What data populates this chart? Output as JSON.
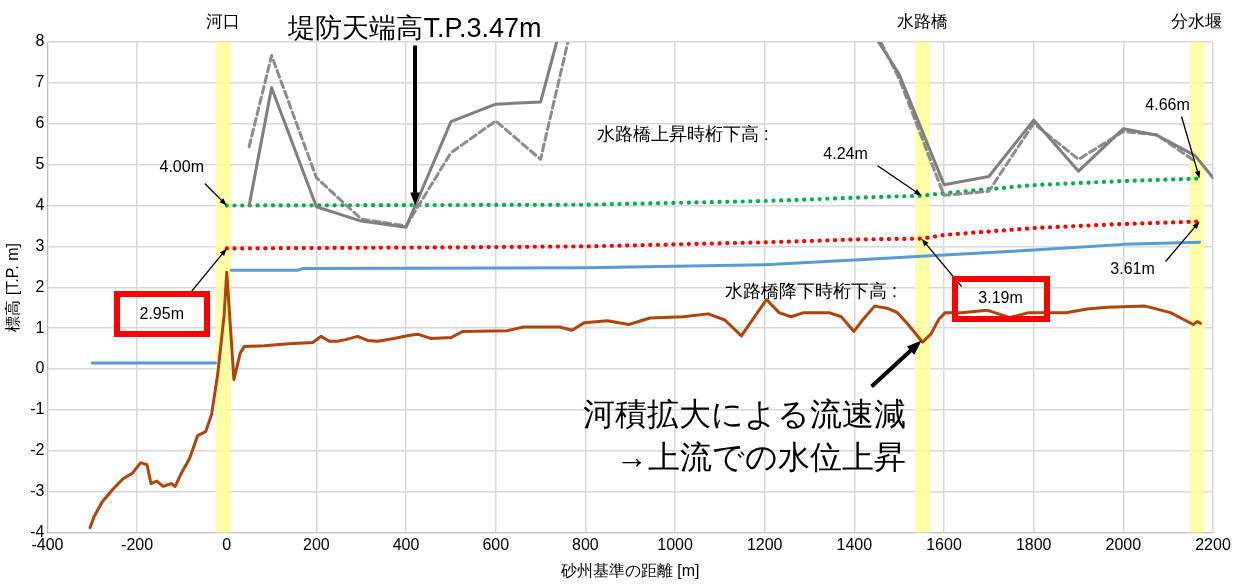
{
  "chart_data": {
    "type": "line",
    "xlabel": "砂州基準の距離 [m]",
    "ylabel": "標高 [T.P. m]",
    "xlim": [
      -400,
      2200
    ],
    "xticks": [
      -400,
      -200,
      0,
      200,
      400,
      600,
      800,
      1000,
      1200,
      1400,
      1600,
      1800,
      2000,
      2200
    ],
    "ylim": [
      -4,
      8
    ],
    "yticks": [
      -4,
      -3,
      -2,
      -1,
      0,
      1,
      2,
      3,
      4,
      5,
      6,
      7,
      8
    ],
    "grid": true,
    "marker": "none",
    "bands": [
      {
        "axis": "x",
        "from": -25,
        "to": 9,
        "label": "河口",
        "color": "#ffff99"
      },
      {
        "axis": "x",
        "from": 1535,
        "to": 1567,
        "label": "水路橋",
        "color": "#ffff99"
      },
      {
        "axis": "x",
        "from": 2147,
        "to": 2181,
        "label": "分水堰",
        "color": "#ffff99"
      }
    ],
    "series": [
      {
        "color": "#7f7f7f",
        "line_style": "solid",
        "x": [
          50,
          100,
          200,
          300,
          400,
          500,
          600,
          700,
          736,
          1100,
          1454,
          1500,
          1600,
          1700,
          1800,
          1900,
          2000,
          2075,
          2160,
          2200
        ],
        "values": [
          4.0,
          6.88,
          3.97,
          3.62,
          3.47,
          6.05,
          6.48,
          6.53,
          8.0,
          null,
          8.0,
          7.21,
          4.51,
          4.71,
          6.09,
          4.84,
          5.88,
          5.72,
          5.22,
          4.68
        ]
      },
      {
        "color": "#8c8c8c",
        "line_style": "dashed",
        "x": [
          50,
          100,
          200,
          300,
          400,
          500,
          600,
          700,
          761,
          1100,
          1459,
          1500,
          1600,
          1700,
          1800,
          1900,
          2000,
          2075,
          2160
        ],
        "values": [
          5.44,
          7.67,
          4.68,
          3.67,
          3.5,
          5.29,
          6.07,
          5.13,
          8.0,
          null,
          8.0,
          7.1,
          4.25,
          4.35,
          6.01,
          5.13,
          5.81,
          5.73,
          5.08
        ]
      },
      {
        "color": "#00b050",
        "line_style": "dotted",
        "x": [
          0,
          400,
          800,
          1200,
          1400,
          1550,
          1600,
          1800,
          2000,
          2170
        ],
        "values": [
          4.0,
          4.01,
          4.02,
          4.11,
          4.19,
          4.24,
          4.3,
          4.5,
          4.6,
          4.66
        ]
      },
      {
        "color": "#ff0000",
        "line_style": "dotted",
        "x": [
          0,
          400,
          800,
          1200,
          1400,
          1550,
          1600,
          1800,
          2000,
          2170
        ],
        "values": [
          2.95,
          2.97,
          3.0,
          3.1,
          3.17,
          3.19,
          3.28,
          3.45,
          3.55,
          3.61
        ]
      },
      {
        "color": "#5b9bd5",
        "line_style": "solid",
        "x": [
          -300,
          -25,
          -10,
          10,
          160,
          170,
          800,
          1200,
          1400,
          1600,
          1800,
          2000,
          2170
        ],
        "values": [
          0.15,
          0.15,
          null,
          2.42,
          2.42,
          2.46,
          2.48,
          2.55,
          2.67,
          2.79,
          2.91,
          3.05,
          3.1
        ]
      },
      {
        "color": "#b0450c",
        "line_style": "solid",
        "x": [
          -305,
          -296,
          -278,
          -255,
          -232,
          -210,
          -192,
          -178,
          -169,
          -156,
          -142,
          -124,
          -115,
          -101,
          -83,
          -65,
          -47,
          -34,
          -20,
          -6,
          0,
          16,
          30,
          39,
          84,
          138,
          192,
          210,
          229,
          247,
          265,
          292,
          314,
          337,
          373,
          405,
          427,
          455,
          500,
          526,
          626,
          662,
          743,
          770,
          797,
          849,
          897,
          944,
          1018,
          1074,
          1111,
          1148,
          1171,
          1204,
          1232,
          1259,
          1287,
          1343,
          1371,
          1399,
          1417,
          1445,
          1473,
          1496,
          1520,
          1552,
          1571,
          1589,
          1603,
          1640,
          1696,
          1747,
          1789,
          1835,
          1872,
          1919,
          1965,
          2049,
          2105,
          2156,
          2165,
          2172
        ],
        "values": [
          -3.88,
          -3.61,
          -3.25,
          -2.95,
          -2.69,
          -2.54,
          -2.29,
          -2.34,
          -2.8,
          -2.74,
          -2.87,
          -2.8,
          -2.87,
          -2.54,
          -2.19,
          -1.63,
          -1.53,
          -1.12,
          -0.11,
          1.3,
          2.37,
          -0.26,
          0.39,
          0.55,
          0.57,
          0.62,
          0.65,
          0.8,
          0.68,
          0.68,
          0.72,
          0.8,
          0.7,
          0.68,
          0.75,
          0.82,
          0.85,
          0.75,
          0.77,
          0.92,
          0.94,
          1.03,
          1.03,
          0.95,
          1.13,
          1.18,
          1.09,
          1.25,
          1.28,
          1.35,
          1.2,
          0.81,
          1.18,
          1.7,
          1.38,
          1.28,
          1.38,
          1.38,
          1.28,
          0.92,
          1.18,
          1.54,
          1.49,
          1.38,
          1.09,
          0.66,
          0.86,
          1.23,
          1.38,
          1.38,
          1.44,
          1.26,
          1.38,
          1.38,
          1.38,
          1.47,
          1.51,
          1.54,
          1.38,
          1.09,
          1.16,
          1.12
        ]
      }
    ],
    "annotations": [
      {
        "text": "堤防天端高T.P.3.47m",
        "x": 420,
        "y": 4.0
      },
      {
        "text": "4.00m",
        "x": 0,
        "y": 4.0
      },
      {
        "text": "2.95m",
        "x": 0,
        "y": 2.95
      },
      "水路橋上昇時桁下高 :",
      {
        "text": "4.24m",
        "x": 1550,
        "y": 4.24
      },
      "水路橋降下時桁下高 :",
      {
        "text": "3.19m",
        "x": 1550,
        "y": 3.19
      },
      {
        "text": "4.66m",
        "x": 2170,
        "y": 4.66
      },
      {
        "text": "3.61m",
        "x": 2170,
        "y": 3.61
      },
      {
        "text": "河積拡大による流速減\n→上流での水位上昇",
        "x": 1550,
        "y": 0.7
      }
    ]
  }
}
